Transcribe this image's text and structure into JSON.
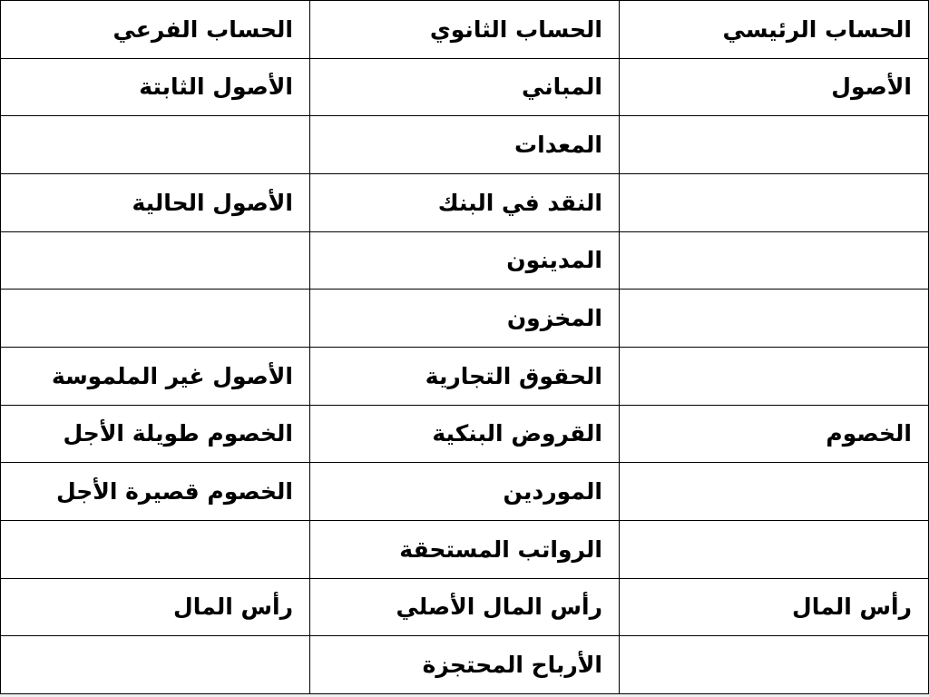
{
  "table": {
    "title_semantic": "chart-of-accounts",
    "direction": "rtl",
    "columns": [
      "الحساب الرئيسي",
      "الحساب الثانوي",
      "الحساب الفرعي"
    ],
    "rows": [
      {
        "main": "الأصول",
        "secondary": "المباني",
        "sub": "الأصول الثابتة"
      },
      {
        "main": "",
        "secondary": "المعدات",
        "sub": ""
      },
      {
        "main": "",
        "secondary": "النقد في البنك",
        "sub": "الأصول الحالية"
      },
      {
        "main": "",
        "secondary": "المدينون",
        "sub": ""
      },
      {
        "main": "",
        "secondary": "المخزون",
        "sub": ""
      },
      {
        "main": "",
        "secondary": "الحقوق التجارية",
        "sub": "الأصول غير الملموسة"
      },
      {
        "main": "الخصوم",
        "secondary": "القروض البنكية",
        "sub": "الخصوم طويلة الأجل"
      },
      {
        "main": "",
        "secondary": "الموردين",
        "sub": "الخصوم قصيرة الأجل"
      },
      {
        "main": "",
        "secondary": "الرواتب المستحقة",
        "sub": ""
      },
      {
        "main": "رأس المال",
        "secondary": "رأس المال الأصلي",
        "sub": "رأس المال"
      },
      {
        "main": "",
        "secondary": "الأرباح المحتجزة",
        "sub": ""
      }
    ],
    "colors": {
      "border": "#000000",
      "text": "#000000",
      "cell_background": "#ffffff",
      "page_background": "#f1f1f1"
    }
  }
}
